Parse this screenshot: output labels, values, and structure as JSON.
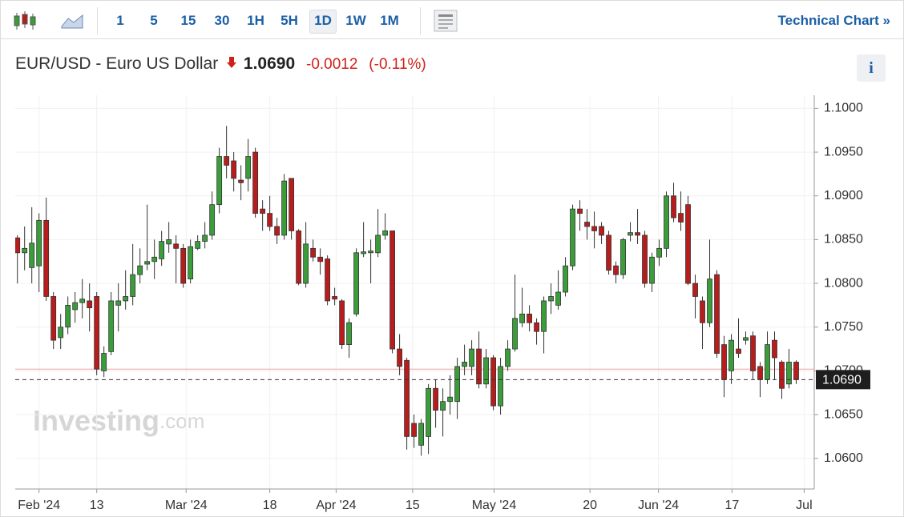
{
  "toolbar": {
    "intervals": [
      "1",
      "5",
      "15",
      "30",
      "1H",
      "5H",
      "1D",
      "1W",
      "1M"
    ],
    "selected": "1D",
    "technical_chart": "Technical Chart »"
  },
  "header": {
    "title": "EUR/USD - Euro US Dollar",
    "price": "1.0690",
    "change": "-0.0012",
    "change_pct": "(-0.11%)",
    "info": "i"
  },
  "watermark": {
    "brand": "Investing",
    "suffix": ".com"
  },
  "chart_data": {
    "type": "candlestick",
    "up_color": "#3a9d3a",
    "down_color": "#b81d1d",
    "ylim": [
      1.0565,
      1.1015
    ],
    "yticks": [
      {
        "value": 1.06,
        "label": "1.0600"
      },
      {
        "value": 1.065,
        "label": "1.0650"
      },
      {
        "value": 1.07,
        "label": "1.0700"
      },
      {
        "value": 1.075,
        "label": "1.0750"
      },
      {
        "value": 1.08,
        "label": "1.0800"
      },
      {
        "value": 1.085,
        "label": "1.0850"
      },
      {
        "value": 1.09,
        "label": "1.0900"
      },
      {
        "value": 1.095,
        "label": "1.0950"
      },
      {
        "value": 1.1,
        "label": "1.1000"
      }
    ],
    "xlim": [
      -0.3,
      110.5
    ],
    "xticks": [
      {
        "value": 3,
        "label": "Feb '24"
      },
      {
        "value": 11,
        "label": "13"
      },
      {
        "value": 23.4,
        "label": "Mar '24"
      },
      {
        "value": 35,
        "label": "18"
      },
      {
        "value": 44.2,
        "label": "Apr '24"
      },
      {
        "value": 54.8,
        "label": "15"
      },
      {
        "value": 66.1,
        "label": "May '24"
      },
      {
        "value": 79.4,
        "label": "20"
      },
      {
        "value": 88.9,
        "label": "Jun '24"
      },
      {
        "value": 99.1,
        "label": "17"
      },
      {
        "value": 109.1,
        "label": "Jul"
      }
    ],
    "grid": true,
    "current_price": {
      "value": 1.069,
      "label": "1.0690"
    },
    "previous_close": 1.0702,
    "candles": [
      {
        "open": 1.0852,
        "high": 1.0855,
        "low": 1.08,
        "close": 1.0835
      },
      {
        "open": 1.0835,
        "high": 1.0865,
        "low": 1.0815,
        "close": 1.084
      },
      {
        "open": 1.0818,
        "high": 1.0887,
        "low": 1.08,
        "close": 1.0846
      },
      {
        "open": 1.082,
        "high": 1.088,
        "low": 1.079,
        "close": 1.0872
      },
      {
        "open": 1.0872,
        "high": 1.0898,
        "low": 1.078,
        "close": 1.0785
      },
      {
        "open": 1.0785,
        "high": 1.079,
        "low": 1.0725,
        "close": 1.0735
      },
      {
        "open": 1.0738,
        "high": 1.0765,
        "low": 1.0725,
        "close": 1.075
      },
      {
        "open": 1.075,
        "high": 1.0785,
        "low": 1.0742,
        "close": 1.0775
      },
      {
        "open": 1.077,
        "high": 1.079,
        "low": 1.0755,
        "close": 1.0778
      },
      {
        "open": 1.0778,
        "high": 1.0805,
        "low": 1.076,
        "close": 1.0782
      },
      {
        "open": 1.078,
        "high": 1.08,
        "low": 1.0745,
        "close": 1.0772
      },
      {
        "open": 1.0785,
        "high": 1.079,
        "low": 1.0695,
        "close": 1.0702
      },
      {
        "open": 1.07,
        "high": 1.0728,
        "low": 1.0693,
        "close": 1.072
      },
      {
        "open": 1.0722,
        "high": 1.079,
        "low": 1.0718,
        "close": 1.078
      },
      {
        "open": 1.0775,
        "high": 1.08,
        "low": 1.0745,
        "close": 1.078
      },
      {
        "open": 1.078,
        "high": 1.0815,
        "low": 1.077,
        "close": 1.0785
      },
      {
        "open": 1.0785,
        "high": 1.0845,
        "low": 1.0775,
        "close": 1.081
      },
      {
        "open": 1.081,
        "high": 1.084,
        "low": 1.08,
        "close": 1.082
      },
      {
        "open": 1.0822,
        "high": 1.089,
        "low": 1.0815,
        "close": 1.0825
      },
      {
        "open": 1.0825,
        "high": 1.085,
        "low": 1.0805,
        "close": 1.083
      },
      {
        "open": 1.0828,
        "high": 1.086,
        "low": 1.082,
        "close": 1.0848
      },
      {
        "open": 1.0845,
        "high": 1.087,
        "low": 1.0835,
        "close": 1.085
      },
      {
        "open": 1.0845,
        "high": 1.0855,
        "low": 1.08,
        "close": 1.084
      },
      {
        "open": 1.084,
        "high": 1.0845,
        "low": 1.0795,
        "close": 1.08
      },
      {
        "open": 1.0805,
        "high": 1.085,
        "low": 1.08,
        "close": 1.0842
      },
      {
        "open": 1.084,
        "high": 1.0855,
        "low": 1.0838,
        "close": 1.0848
      },
      {
        "open": 1.0848,
        "high": 1.087,
        "low": 1.084,
        "close": 1.0855
      },
      {
        "open": 1.0855,
        "high": 1.0905,
        "low": 1.085,
        "close": 1.089
      },
      {
        "open": 1.089,
        "high": 1.0955,
        "low": 1.088,
        "close": 1.0945
      },
      {
        "open": 1.0945,
        "high": 1.098,
        "low": 1.092,
        "close": 1.0935
      },
      {
        "open": 1.094,
        "high": 1.095,
        "low": 1.0905,
        "close": 1.092
      },
      {
        "open": 1.0918,
        "high": 1.0935,
        "low": 1.0895,
        "close": 1.0915
      },
      {
        "open": 1.092,
        "high": 1.0965,
        "low": 1.0905,
        "close": 1.0945
      },
      {
        "open": 1.095,
        "high": 1.0955,
        "low": 1.0875,
        "close": 1.088
      },
      {
        "open": 1.0885,
        "high": 1.0895,
        "low": 1.086,
        "close": 1.088
      },
      {
        "open": 1.088,
        "high": 1.09,
        "low": 1.086,
        "close": 1.0865
      },
      {
        "open": 1.0865,
        "high": 1.0875,
        "low": 1.0845,
        "close": 1.0855
      },
      {
        "open": 1.0855,
        "high": 1.0925,
        "low": 1.085,
        "close": 1.0917
      },
      {
        "open": 1.092,
        "high": 1.092,
        "low": 1.085,
        "close": 1.086
      },
      {
        "open": 1.086,
        "high": 1.0862,
        "low": 1.0798,
        "close": 1.08
      },
      {
        "open": 1.08,
        "high": 1.087,
        "low": 1.0795,
        "close": 1.0845
      },
      {
        "open": 1.084,
        "high": 1.085,
        "low": 1.0825,
        "close": 1.083
      },
      {
        "open": 1.083,
        "high": 1.084,
        "low": 1.081,
        "close": 1.0825
      },
      {
        "open": 1.0828,
        "high": 1.0832,
        "low": 1.0775,
        "close": 1.078
      },
      {
        "open": 1.0785,
        "high": 1.0795,
        "low": 1.0775,
        "close": 1.0782
      },
      {
        "open": 1.078,
        "high": 1.0782,
        "low": 1.0725,
        "close": 1.073
      },
      {
        "open": 1.073,
        "high": 1.076,
        "low": 1.0715,
        "close": 1.0755
      },
      {
        "open": 1.0765,
        "high": 1.084,
        "low": 1.0762,
        "close": 1.0835
      },
      {
        "open": 1.0834,
        "high": 1.087,
        "low": 1.083,
        "close": 1.0836
      },
      {
        "open": 1.0835,
        "high": 1.085,
        "low": 1.08,
        "close": 1.0837
      },
      {
        "open": 1.0835,
        "high": 1.0885,
        "low": 1.083,
        "close": 1.0855
      },
      {
        "open": 1.0855,
        "high": 1.088,
        "low": 1.085,
        "close": 1.086
      },
      {
        "open": 1.086,
        "high": 1.086,
        "low": 1.072,
        "close": 1.0725
      },
      {
        "open": 1.0725,
        "high": 1.0742,
        "low": 1.0695,
        "close": 1.0705
      },
      {
        "open": 1.0712,
        "high": 1.0715,
        "low": 1.061,
        "close": 1.0625
      },
      {
        "open": 1.064,
        "high": 1.065,
        "low": 1.0612,
        "close": 1.0625
      },
      {
        "open": 1.0615,
        "high": 1.0645,
        "low": 1.0603,
        "close": 1.064
      },
      {
        "open": 1.0625,
        "high": 1.0685,
        "low": 1.0605,
        "close": 1.068
      },
      {
        "open": 1.068,
        "high": 1.069,
        "low": 1.0635,
        "close": 1.0655
      },
      {
        "open": 1.0655,
        "high": 1.068,
        "low": 1.0625,
        "close": 1.0665
      },
      {
        "open": 1.0665,
        "high": 1.0695,
        "low": 1.065,
        "close": 1.067
      },
      {
        "open": 1.0665,
        "high": 1.0715,
        "low": 1.0645,
        "close": 1.0705
      },
      {
        "open": 1.0705,
        "high": 1.073,
        "low": 1.0695,
        "close": 1.071
      },
      {
        "open": 1.0705,
        "high": 1.0735,
        "low": 1.0695,
        "close": 1.0725
      },
      {
        "open": 1.0725,
        "high": 1.0745,
        "low": 1.068,
        "close": 1.0685
      },
      {
        "open": 1.0685,
        "high": 1.0725,
        "low": 1.068,
        "close": 1.0715
      },
      {
        "open": 1.0715,
        "high": 1.0718,
        "low": 1.0655,
        "close": 1.066
      },
      {
        "open": 1.066,
        "high": 1.0715,
        "low": 1.065,
        "close": 1.0705
      },
      {
        "open": 1.0705,
        "high": 1.0735,
        "low": 1.07,
        "close": 1.0725
      },
      {
        "open": 1.0725,
        "high": 1.081,
        "low": 1.0722,
        "close": 1.076
      },
      {
        "open": 1.0755,
        "high": 1.0795,
        "low": 1.075,
        "close": 1.0765
      },
      {
        "open": 1.0765,
        "high": 1.0775,
        "low": 1.0745,
        "close": 1.0755
      },
      {
        "open": 1.0755,
        "high": 1.076,
        "low": 1.073,
        "close": 1.0745
      },
      {
        "open": 1.0745,
        "high": 1.0785,
        "low": 1.072,
        "close": 1.078
      },
      {
        "open": 1.078,
        "high": 1.08,
        "low": 1.0765,
        "close": 1.0785
      },
      {
        "open": 1.0775,
        "high": 1.0815,
        "low": 1.077,
        "close": 1.079
      },
      {
        "open": 1.079,
        "high": 1.083,
        "low": 1.0785,
        "close": 1.082
      },
      {
        "open": 1.082,
        "high": 1.089,
        "low": 1.0815,
        "close": 1.0885
      },
      {
        "open": 1.0885,
        "high": 1.0895,
        "low": 1.086,
        "close": 1.088
      },
      {
        "open": 1.087,
        "high": 1.0885,
        "low": 1.085,
        "close": 1.0865
      },
      {
        "open": 1.0865,
        "high": 1.0882,
        "low": 1.084,
        "close": 1.086
      },
      {
        "open": 1.0865,
        "high": 1.087,
        "low": 1.0845,
        "close": 1.0855
      },
      {
        "open": 1.0855,
        "high": 1.086,
        "low": 1.081,
        "close": 1.0815
      },
      {
        "open": 1.082,
        "high": 1.0825,
        "low": 1.08,
        "close": 1.081
      },
      {
        "open": 1.081,
        "high": 1.0852,
        "low": 1.0805,
        "close": 1.085
      },
      {
        "open": 1.0855,
        "high": 1.087,
        "low": 1.0848,
        "close": 1.0858
      },
      {
        "open": 1.0858,
        "high": 1.0885,
        "low": 1.0845,
        "close": 1.0855
      },
      {
        "open": 1.0855,
        "high": 1.086,
        "low": 1.0795,
        "close": 1.08
      },
      {
        "open": 1.08,
        "high": 1.0835,
        "low": 1.079,
        "close": 1.083
      },
      {
        "open": 1.083,
        "high": 1.085,
        "low": 1.082,
        "close": 1.084
      },
      {
        "open": 1.084,
        "high": 1.0905,
        "low": 1.083,
        "close": 1.09
      },
      {
        "open": 1.09,
        "high": 1.0915,
        "low": 1.087,
        "close": 1.0875
      },
      {
        "open": 1.088,
        "high": 1.0905,
        "low": 1.086,
        "close": 1.087
      },
      {
        "open": 1.089,
        "high": 1.09,
        "low": 1.0798,
        "close": 1.08
      },
      {
        "open": 1.08,
        "high": 1.081,
        "low": 1.076,
        "close": 1.0785
      },
      {
        "open": 1.078,
        "high": 1.0785,
        "low": 1.0725,
        "close": 1.0755
      },
      {
        "open": 1.0755,
        "high": 1.085,
        "low": 1.075,
        "close": 1.0805
      },
      {
        "open": 1.081,
        "high": 1.0815,
        "low": 1.0715,
        "close": 1.072
      },
      {
        "open": 1.073,
        "high": 1.074,
        "low": 1.067,
        "close": 1.069
      },
      {
        "open": 1.07,
        "high": 1.0742,
        "low": 1.0685,
        "close": 1.0735
      },
      {
        "open": 1.0725,
        "high": 1.076,
        "low": 1.0715,
        "close": 1.072
      },
      {
        "open": 1.0735,
        "high": 1.0745,
        "low": 1.073,
        "close": 1.0738
      },
      {
        "open": 1.074,
        "high": 1.0745,
        "low": 1.069,
        "close": 1.07
      },
      {
        "open": 1.0705,
        "high": 1.071,
        "low": 1.067,
        "close": 1.069
      },
      {
        "open": 1.069,
        "high": 1.0745,
        "low": 1.0685,
        "close": 1.073
      },
      {
        "open": 1.0735,
        "high": 1.0745,
        "low": 1.069,
        "close": 1.0715
      },
      {
        "open": 1.071,
        "high": 1.0712,
        "low": 1.0668,
        "close": 1.068
      },
      {
        "open": 1.0685,
        "high": 1.0725,
        "low": 1.068,
        "close": 1.071
      },
      {
        "open": 1.071,
        "high": 1.0712,
        "low": 1.0685,
        "close": 1.069
      }
    ]
  }
}
